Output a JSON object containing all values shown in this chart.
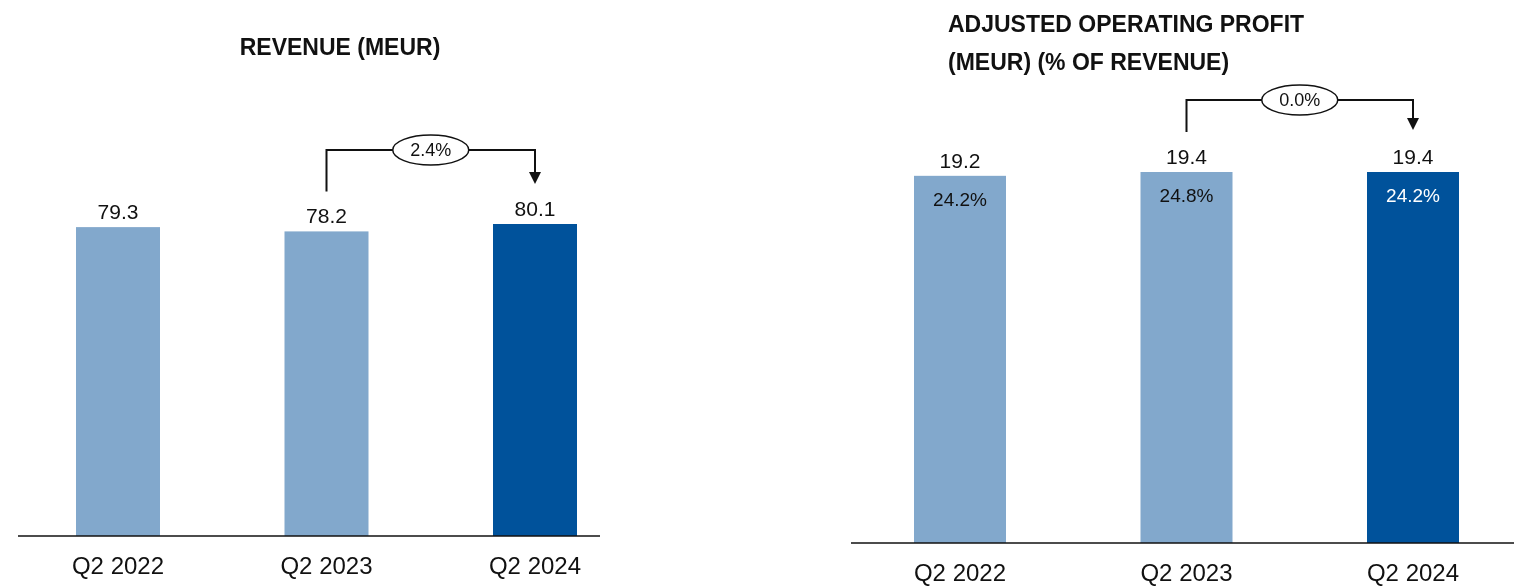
{
  "chart_data": [
    {
      "type": "bar",
      "title": "REVENUE (MEUR)",
      "categories": [
        "Q2 2022",
        "Q2 2023",
        "Q2 2024"
      ],
      "values": [
        79.3,
        78.2,
        80.1
      ],
      "colors": [
        "#82a8cc",
        "#82a8cc",
        "#00529b"
      ],
      "data_labels": true,
      "tick_labels": "x",
      "annotations": [
        "2.4%"
      ]
    },
    {
      "type": "bar",
      "title": "ADJUSTED OPERATING PROFIT (MEUR) (% OF REVENUE)",
      "categories": [
        "Q2 2022",
        "Q2 2023",
        "Q2 2024"
      ],
      "values": [
        19.2,
        19.4,
        19.4
      ],
      "colors": [
        "#82a8cc",
        "#82a8cc",
        "#00529b"
      ],
      "data_labels": true,
      "tick_labels": "x",
      "annotations": [
        "0.0%",
        "24.2%",
        "24.8%",
        "24.2%"
      ]
    }
  ]
}
